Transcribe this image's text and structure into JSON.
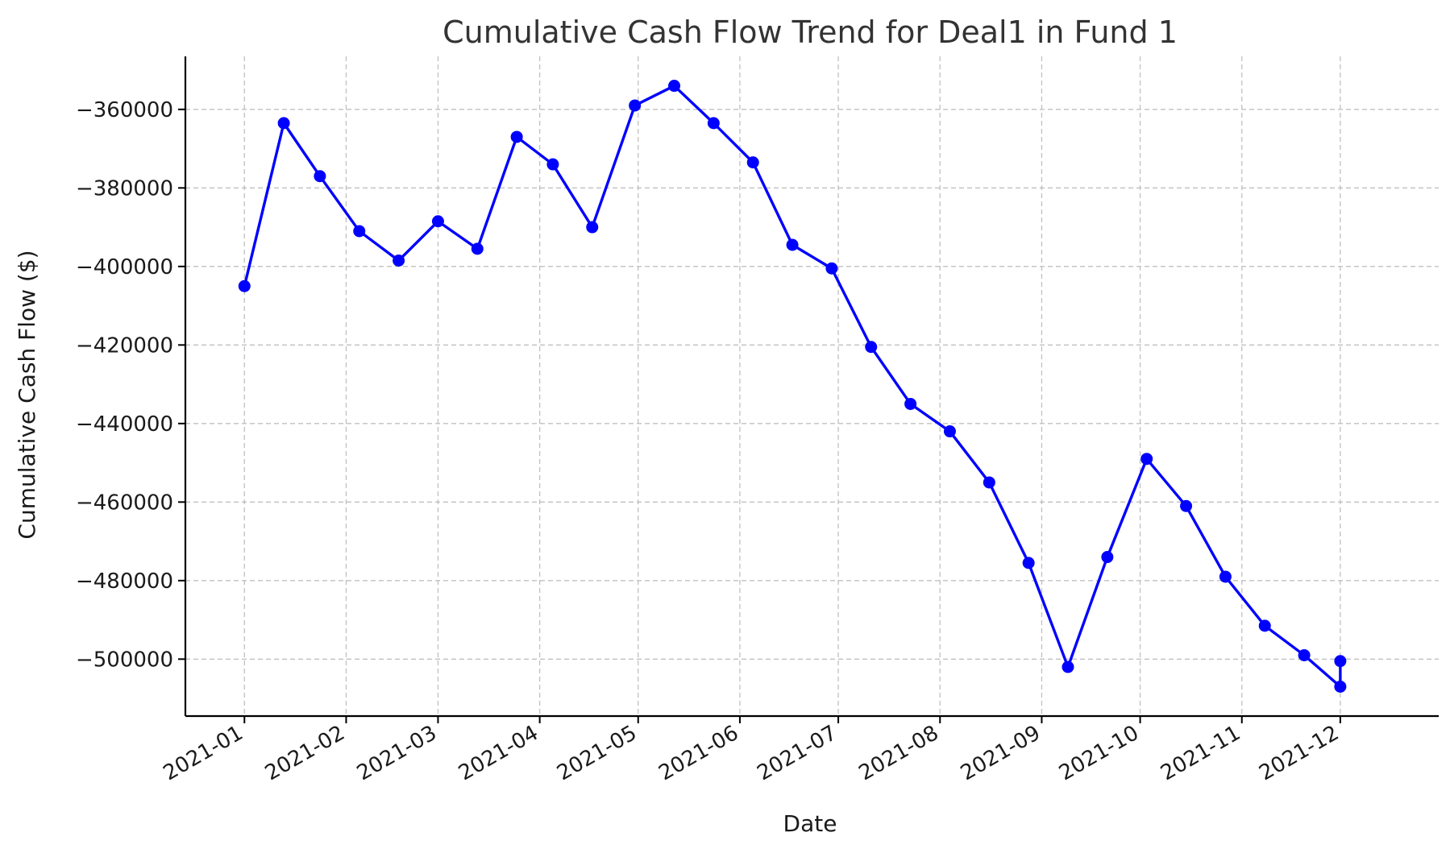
{
  "chart_data": {
    "type": "line",
    "title": "Cumulative Cash Flow Trend for Deal1 in Fund 1",
    "xlabel": "Date",
    "ylabel": "Cumulative Cash Flow ($)",
    "x_ticks": [
      "2021-01",
      "2021-02",
      "2021-03",
      "2021-04",
      "2021-05",
      "2021-06",
      "2021-07",
      "2021-08",
      "2021-09",
      "2021-10",
      "2021-11",
      "2021-12"
    ],
    "y_ticks": [
      -360000,
      -380000,
      -400000,
      -420000,
      -440000,
      -460000,
      -480000,
      -500000
    ],
    "y_tick_labels": [
      "−360000",
      "−380000",
      "−400000",
      "−420000",
      "−440000",
      "−460000",
      "−480000",
      "−500000"
    ],
    "xlim": [
      "2020-12-14",
      "2021-12-31"
    ],
    "ylim": [
      -514500,
      -346500
    ],
    "grid": true,
    "series": [
      {
        "color": "#0000ff",
        "marker": "circle",
        "points": [
          {
            "x": "2021-01-01",
            "y": -405000
          },
          {
            "x": "2021-01-13",
            "y": -363500
          },
          {
            "x": "2021-01-24",
            "y": -377000
          },
          {
            "x": "2021-02-05",
            "y": -391000
          },
          {
            "x": "2021-02-17",
            "y": -398500
          },
          {
            "x": "2021-03-01",
            "y": -388500
          },
          {
            "x": "2021-03-13",
            "y": -395500
          },
          {
            "x": "2021-03-25",
            "y": -367000
          },
          {
            "x": "2021-04-05",
            "y": -374000
          },
          {
            "x": "2021-04-17",
            "y": -390000
          },
          {
            "x": "2021-04-30",
            "y": -359000
          },
          {
            "x": "2021-05-12",
            "y": -354000
          },
          {
            "x": "2021-05-24",
            "y": -363500
          },
          {
            "x": "2021-06-05",
            "y": -373500
          },
          {
            "x": "2021-06-17",
            "y": -394500
          },
          {
            "x": "2021-06-29",
            "y": -400500
          },
          {
            "x": "2021-07-11",
            "y": -420500
          },
          {
            "x": "2021-07-23",
            "y": -435000
          },
          {
            "x": "2021-08-04",
            "y": -442000
          },
          {
            "x": "2021-08-16",
            "y": -455000
          },
          {
            "x": "2021-08-28",
            "y": -475500
          },
          {
            "x": "2021-09-09",
            "y": -502000
          },
          {
            "x": "2021-09-21",
            "y": -474000
          },
          {
            "x": "2021-10-03",
            "y": -449000
          },
          {
            "x": "2021-10-15",
            "y": -461000
          },
          {
            "x": "2021-10-27",
            "y": -479000
          },
          {
            "x": "2021-11-08",
            "y": -491500
          },
          {
            "x": "2021-11-20",
            "y": -499000
          },
          {
            "x": "2021-12-01",
            "y": -507000
          },
          {
            "x": "2021-12-01",
            "y": -500500
          }
        ]
      }
    ]
  }
}
